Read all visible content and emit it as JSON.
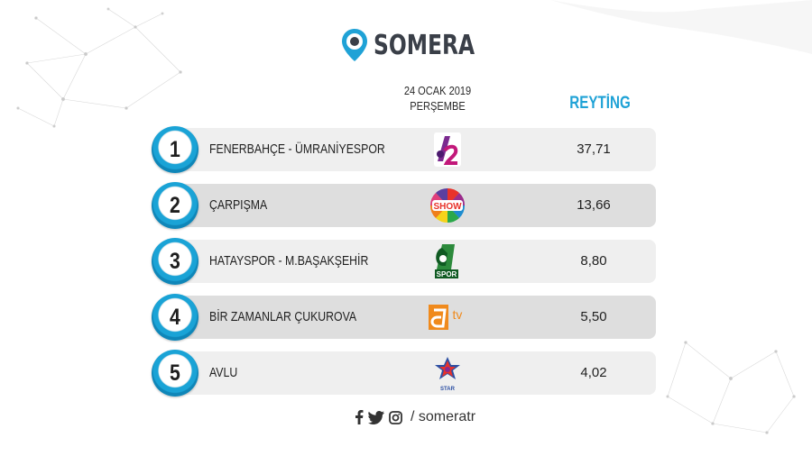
{
  "brand": {
    "name": "SOMERA",
    "accent_color": "#1fa2d6"
  },
  "header": {
    "date_line1": "24 OCAK 2019",
    "date_line2": "PERŞEMBE",
    "rating_label": "REYTİNG"
  },
  "rows": [
    {
      "rank": "1",
      "program": "FENERBAHÇE - ÜMRANİYESPOR",
      "channel_icon": "a2-logo-icon",
      "rating": "37,71"
    },
    {
      "rank": "2",
      "program": "ÇARPIŞMA",
      "channel_icon": "show-tv-logo-icon",
      "channel_text": "SHOW",
      "rating": "13,66"
    },
    {
      "rank": "3",
      "program": "HATAYSPOR - M.BAŞAKŞEHİR",
      "channel_icon": "a-spor-logo-icon",
      "channel_text": "SPOR",
      "rating": "8,80"
    },
    {
      "rank": "4",
      "program": "BİR ZAMANLAR ÇUKUROVA",
      "channel_icon": "atv-logo-icon",
      "channel_text": "tv",
      "rating": "5,50"
    },
    {
      "rank": "5",
      "program": "AVLU",
      "channel_icon": "star-tv-logo-icon",
      "channel_text": "STAR",
      "rating": "4,02"
    }
  ],
  "footer": {
    "icons": [
      "facebook-icon",
      "twitter-icon",
      "instagram-icon"
    ],
    "handle": "/ someratr"
  }
}
